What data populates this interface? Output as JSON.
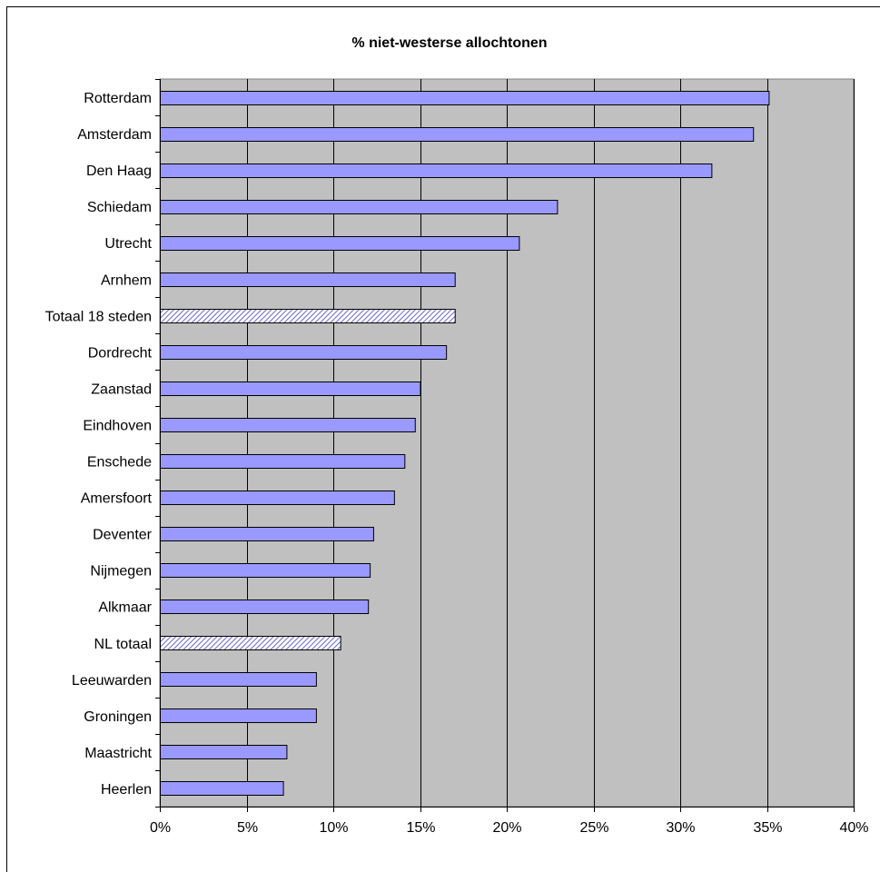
{
  "chart_data": {
    "type": "bar",
    "orientation": "horizontal",
    "title": "% niet-westerse allochtonen",
    "xlabel": "",
    "ylabel": "",
    "xlim": [
      0,
      40
    ],
    "x_tick_values": [
      0,
      5,
      10,
      15,
      20,
      25,
      30,
      35,
      40
    ],
    "x_tick_labels": [
      "0%",
      "5%",
      "10%",
      "15%",
      "20%",
      "25%",
      "30%",
      "35%",
      "40%"
    ],
    "grid": "vertical",
    "legend": "none",
    "categories": [
      "Rotterdam",
      "Amsterdam",
      "Den Haag",
      "Schiedam",
      "Utrecht",
      "Arnhem",
      "Totaal 18 steden",
      "Dordrecht",
      "Zaanstad",
      "Eindhoven",
      "Enschede",
      "Amersfoort",
      "Deventer",
      "Nijmegen",
      "Alkmaar",
      "NL totaal",
      "Leeuwarden",
      "Groningen",
      "Maastricht",
      "Heerlen"
    ],
    "values": [
      35.1,
      34.2,
      31.8,
      22.9,
      20.7,
      17.0,
      17.0,
      16.5,
      15.0,
      14.7,
      14.1,
      13.5,
      12.3,
      12.1,
      12.0,
      10.4,
      9.0,
      9.0,
      7.3,
      7.1
    ],
    "highlighted": [
      "Totaal 18 steden",
      "NL totaal"
    ],
    "colors": {
      "bar": "#9999ff",
      "bar_highlight_hatch": "#6666cc",
      "bar_highlight_bg": "#ffffff",
      "plot_background": "#c0c0c0",
      "gridline": "#000000"
    }
  }
}
